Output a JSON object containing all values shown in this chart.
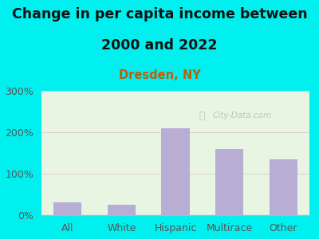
{
  "title_line1": "Change in per capita income between",
  "title_line2": "2000 and 2022",
  "subtitle": "Dresden, NY",
  "categories": [
    "All",
    "White",
    "Hispanic",
    "Multirace",
    "Other"
  ],
  "values": [
    30,
    25,
    210,
    160,
    135
  ],
  "bar_color": "#b8aed4",
  "title_fontsize": 12.5,
  "subtitle_fontsize": 10.5,
  "subtitle_color": "#c45c00",
  "title_color": "#111111",
  "background_outer": "#00f0f0",
  "background_inner": "#e8f5e2",
  "ylim": [
    0,
    300
  ],
  "yticks": [
    0,
    100,
    200,
    300
  ],
  "grid_color": "#ddcccc",
  "watermark": "City-Data.com",
  "tick_fontsize": 9
}
